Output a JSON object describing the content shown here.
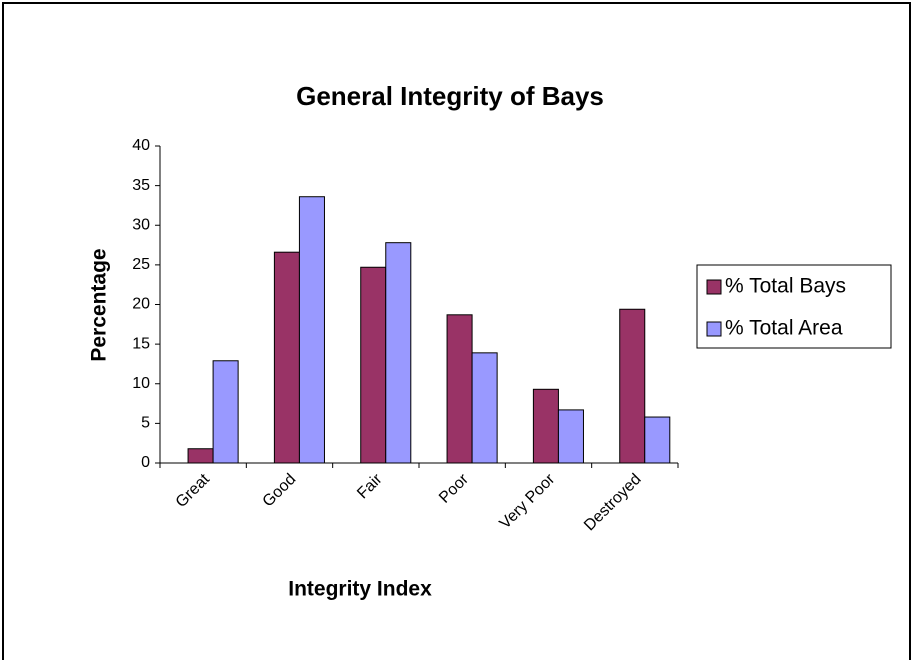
{
  "chart_data": {
    "type": "bar",
    "title": "General Integrity of Bays",
    "x_label": "Integrity Index",
    "y_label": "Percentage",
    "categories": [
      "Great",
      "Good",
      "Fair",
      "Poor",
      "Very Poor",
      "Destroyed"
    ],
    "series": [
      {
        "name": "% Total Bays",
        "color": "#993366",
        "values": [
          1.8,
          26.6,
          24.7,
          18.7,
          9.3,
          19.4
        ]
      },
      {
        "name": "% Total Area",
        "color": "#9999ff",
        "values": [
          12.9,
          33.6,
          27.8,
          13.9,
          6.7,
          5.8
        ]
      }
    ],
    "ylim": [
      0,
      40
    ],
    "yticks": [
      0,
      5,
      10,
      15,
      20,
      25,
      30,
      35,
      40
    ],
    "legend": "right"
  }
}
